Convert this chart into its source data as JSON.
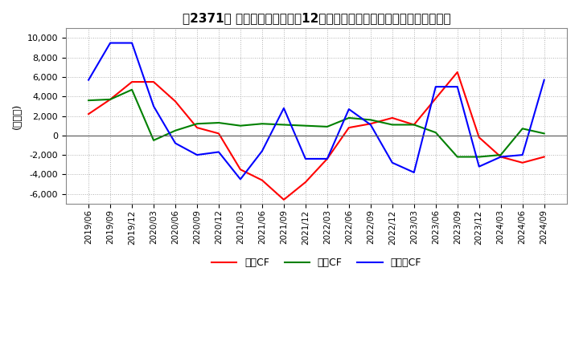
{
  "title": "【2371】 キャッシュフローの12か月移動合計の対前年同期増減額の推移",
  "ylabel": "(百万円)",
  "ylim": [
    -7000,
    11000
  ],
  "yticks": [
    -6000,
    -4000,
    -2000,
    0,
    2000,
    4000,
    6000,
    8000,
    10000
  ],
  "dates": [
    "2019/06",
    "2019/09",
    "2019/12",
    "2020/03",
    "2020/06",
    "2020/09",
    "2020/12",
    "2021/03",
    "2021/06",
    "2021/09",
    "2021/12",
    "2022/03",
    "2022/06",
    "2022/09",
    "2022/12",
    "2023/03",
    "2023/06",
    "2023/09",
    "2023/12",
    "2024/03",
    "2024/06",
    "2024/09"
  ],
  "operating_cf": [
    2200,
    3700,
    5500,
    5500,
    3500,
    800,
    200,
    -3500,
    -4600,
    -6600,
    -4800,
    -2400,
    800,
    1200,
    1800,
    1100,
    3800,
    6500,
    -200,
    -2200,
    -2800,
    -2200
  ],
  "investing_cf": [
    3600,
    3700,
    4700,
    -500,
    500,
    1200,
    1300,
    1000,
    1200,
    1100,
    1000,
    900,
    1800,
    1600,
    1100,
    1100,
    300,
    -2200,
    -2200,
    -2000,
    700,
    200
  ],
  "free_cf": [
    5700,
    9500,
    9500,
    3000,
    -800,
    -2000,
    -1700,
    -4500,
    -1600,
    2800,
    -2400,
    -2400,
    2700,
    1100,
    -2800,
    -3800,
    5000,
    5000,
    -3200,
    -2200,
    -2000,
    5700
  ],
  "color_operating": "#ff0000",
  "color_investing": "#008000",
  "color_free": "#0000ff",
  "legend_labels": [
    "営業CF",
    "投資CF",
    "フリーCF"
  ],
  "background_color": "#ffffff",
  "grid_color": "#b0b0b0",
  "title_fontsize": 11
}
